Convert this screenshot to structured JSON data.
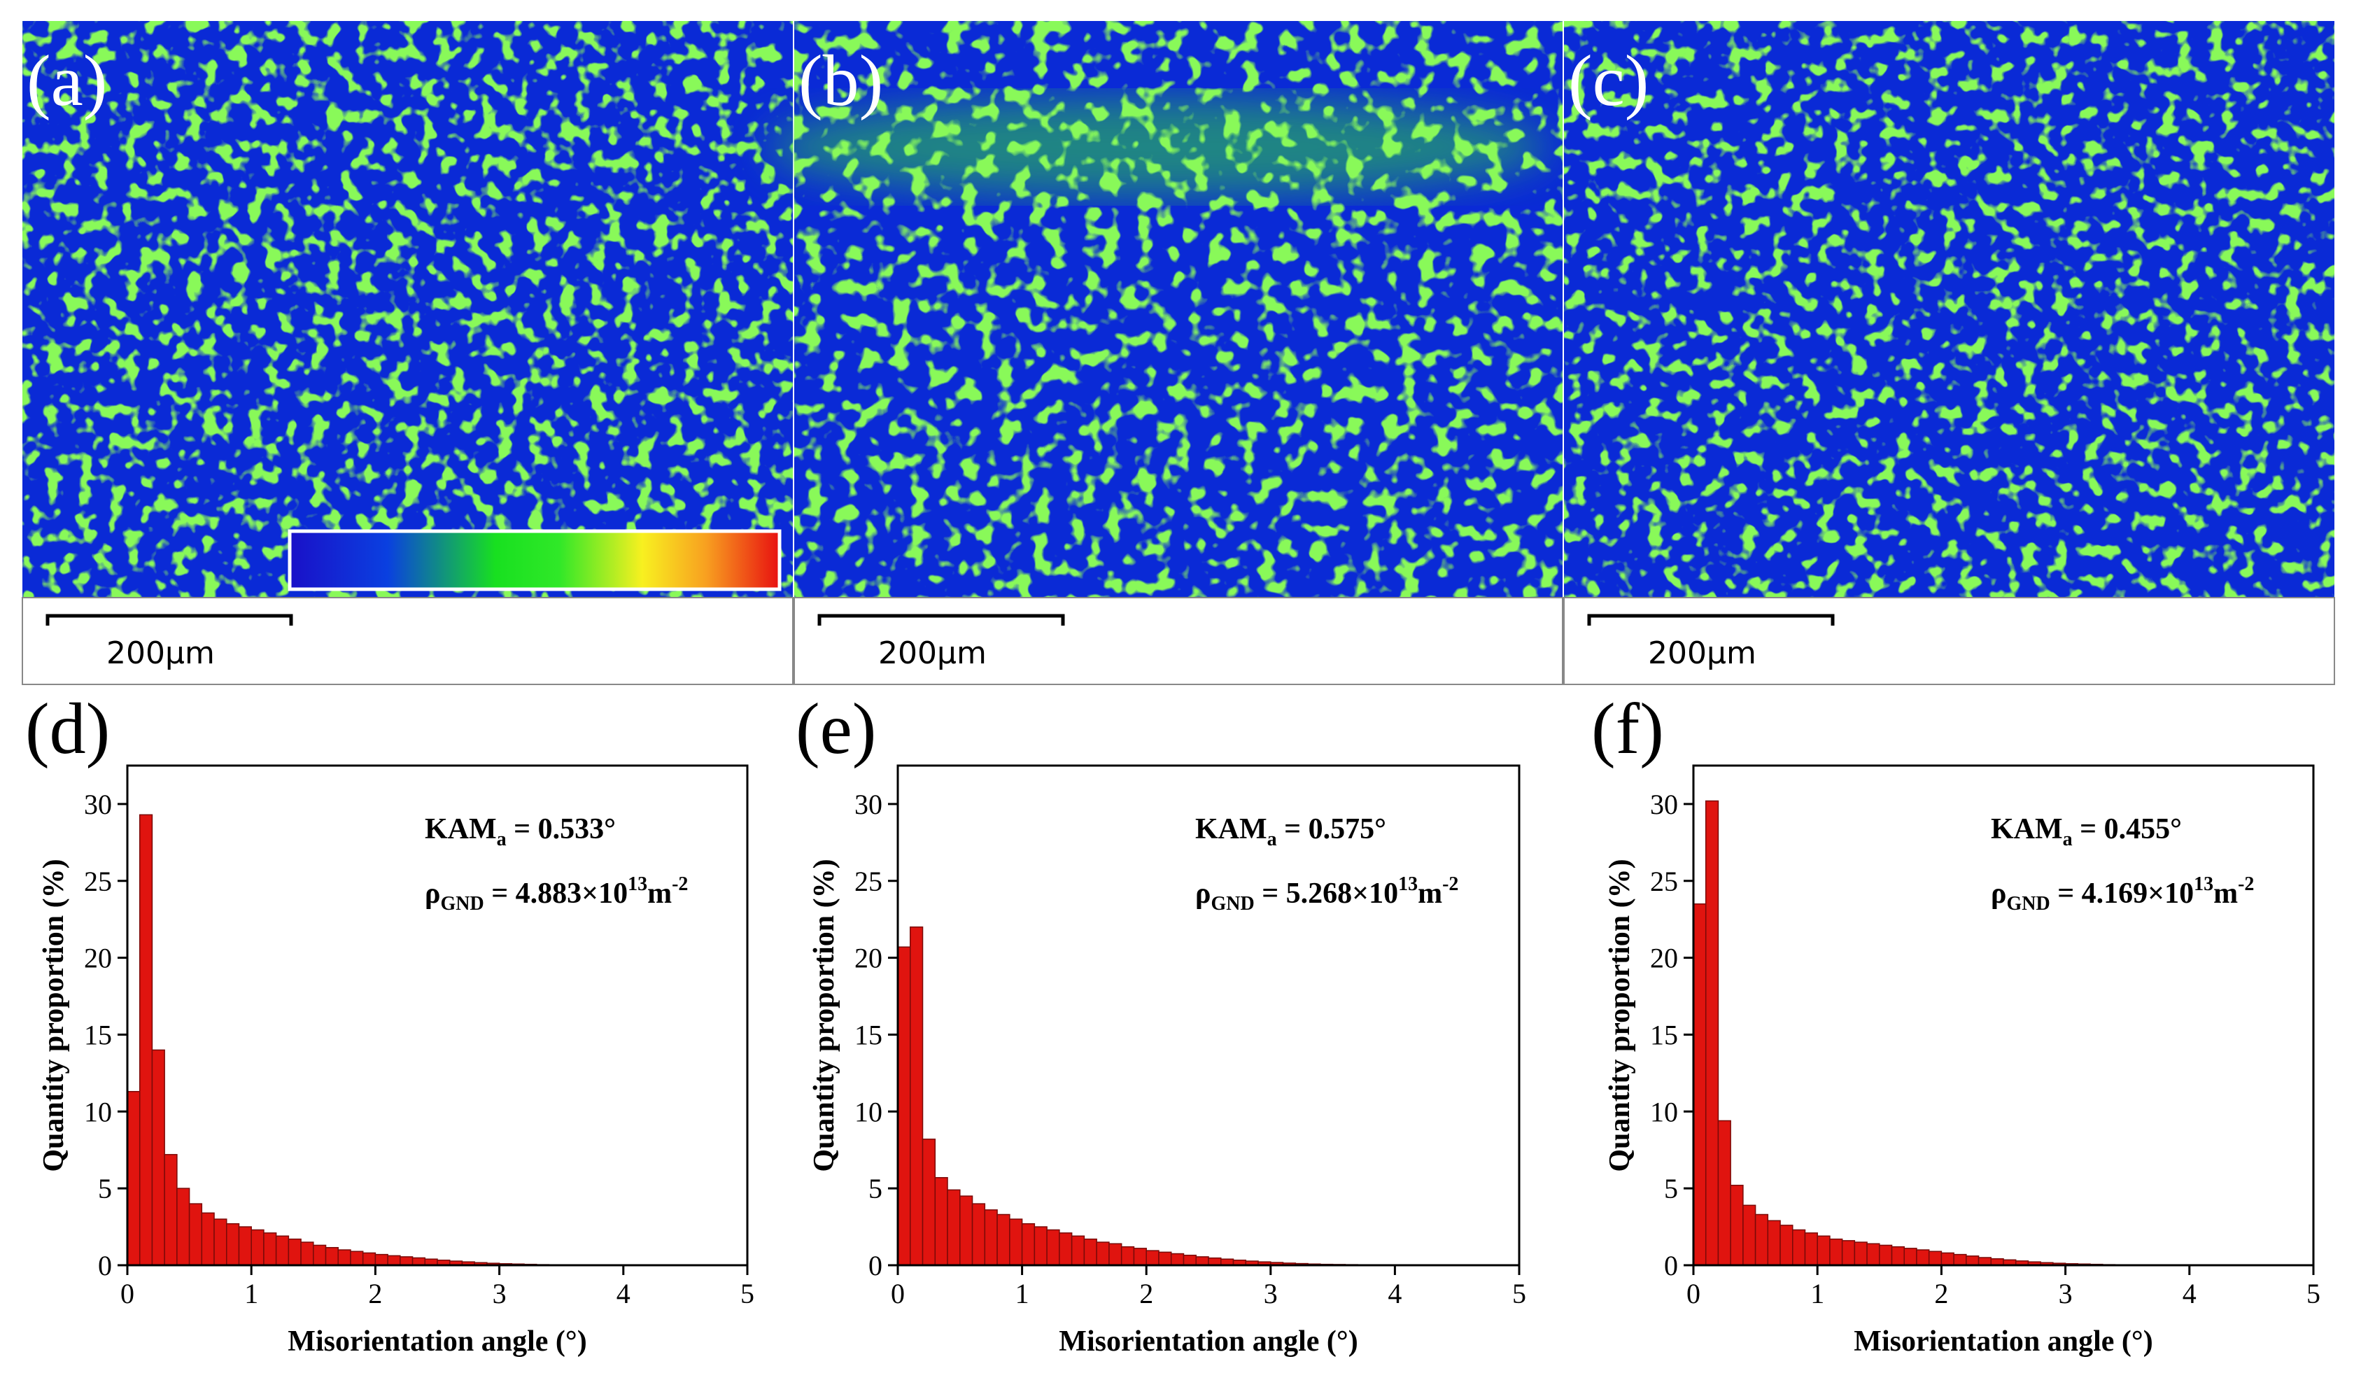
{
  "maps": [
    {
      "label": "(a)",
      "scale_bar": "200μm"
    },
    {
      "label": "(b)",
      "scale_bar": "200μm"
    },
    {
      "label": "(c)",
      "scale_bar": "200μm"
    }
  ],
  "chart_data": [
    {
      "type": "histogram",
      "panel_label": "(d)",
      "x_label": "Misorientation angle (°)",
      "y_label": "Quantity proportion (%)",
      "color": "#e0140f",
      "annotation": {
        "kam": [
          "KAM",
          "a",
          " = 0.533°"
        ],
        "rho": [
          "ρ",
          "GND",
          " = 4.883×10",
          "13",
          "m",
          "-2"
        ]
      },
      "bins": [
        0,
        0.1,
        0.2,
        0.3,
        0.4,
        0.5,
        0.6,
        0.7,
        0.8,
        0.9,
        1,
        1.1,
        1.2,
        1.3,
        1.4,
        1.5,
        1.6,
        1.7,
        1.8,
        1.9,
        2,
        2.1,
        2.2,
        2.3,
        2.4,
        2.5,
        2.6,
        2.7,
        2.8,
        2.9,
        3,
        3.1,
        3.2,
        3.3,
        3.4,
        3.5,
        3.6,
        3.7,
        3.8,
        3.9,
        4,
        4.1,
        4.2,
        4.3,
        4.4,
        4.5,
        4.6,
        4.7,
        4.8,
        4.9,
        5
      ],
      "values": [
        11.3,
        29.3,
        14.0,
        7.2,
        5.0,
        4.0,
        3.4,
        3.0,
        2.7,
        2.5,
        2.3,
        2.1,
        1.9,
        1.7,
        1.5,
        1.3,
        1.15,
        1.0,
        0.9,
        0.8,
        0.7,
        0.62,
        0.55,
        0.48,
        0.4,
        0.33,
        0.27,
        0.22,
        0.17,
        0.13,
        0.1,
        0.08,
        0.06,
        0.04,
        0.03,
        0.02,
        0.02,
        0.01,
        0.01,
        0.01,
        0,
        0,
        0,
        0,
        0,
        0,
        0,
        0,
        0,
        0
      ],
      "xlim": [
        0,
        5
      ],
      "ylim": [
        0,
        32.5
      ],
      "xticks": [
        0,
        1,
        2,
        3,
        4,
        5
      ],
      "yticks": [
        0,
        5,
        10,
        15,
        20,
        25,
        30
      ]
    },
    {
      "type": "histogram",
      "panel_label": "(e)",
      "x_label": "Misorientation angle (°)",
      "y_label": "Quantity proportion (%)",
      "color": "#e0140f",
      "annotation": {
        "kam": [
          "KAM",
          "a",
          " = 0.575°"
        ],
        "rho": [
          "ρ",
          "GND",
          " = 5.268×10",
          "13",
          "m",
          "-2"
        ]
      },
      "bins": [
        0,
        0.1,
        0.2,
        0.3,
        0.4,
        0.5,
        0.6,
        0.7,
        0.8,
        0.9,
        1,
        1.1,
        1.2,
        1.3,
        1.4,
        1.5,
        1.6,
        1.7,
        1.8,
        1.9,
        2,
        2.1,
        2.2,
        2.3,
        2.4,
        2.5,
        2.6,
        2.7,
        2.8,
        2.9,
        3,
        3.1,
        3.2,
        3.3,
        3.4,
        3.5,
        3.6,
        3.7,
        3.8,
        3.9,
        4,
        4.1,
        4.2,
        4.3,
        4.4,
        4.5,
        4.6,
        4.7,
        4.8,
        4.9,
        5
      ],
      "values": [
        20.7,
        22.0,
        8.2,
        5.7,
        4.9,
        4.5,
        4.0,
        3.6,
        3.3,
        3.0,
        2.7,
        2.5,
        2.3,
        2.1,
        1.9,
        1.7,
        1.5,
        1.4,
        1.2,
        1.1,
        0.95,
        0.85,
        0.75,
        0.65,
        0.55,
        0.47,
        0.4,
        0.33,
        0.27,
        0.22,
        0.18,
        0.14,
        0.11,
        0.08,
        0.06,
        0.05,
        0.04,
        0.03,
        0.02,
        0.01,
        0,
        0,
        0,
        0,
        0,
        0,
        0,
        0,
        0,
        0
      ],
      "xlim": [
        0,
        5
      ],
      "ylim": [
        0,
        32.5
      ],
      "xticks": [
        0,
        1,
        2,
        3,
        4,
        5
      ],
      "yticks": [
        0,
        5,
        10,
        15,
        20,
        25,
        30
      ]
    },
    {
      "type": "histogram",
      "panel_label": "(f)",
      "x_label": "Misorientation angle (°)",
      "y_label": "Quantity proportion (%)",
      "color": "#e0140f",
      "annotation": {
        "kam": [
          "KAM",
          "a",
          " = 0.455°"
        ],
        "rho": [
          "ρ",
          "GND",
          " = 4.169×10",
          "13",
          "m",
          "-2"
        ]
      },
      "bins": [
        0,
        0.1,
        0.2,
        0.3,
        0.4,
        0.5,
        0.6,
        0.7,
        0.8,
        0.9,
        1,
        1.1,
        1.2,
        1.3,
        1.4,
        1.5,
        1.6,
        1.7,
        1.8,
        1.9,
        2,
        2.1,
        2.2,
        2.3,
        2.4,
        2.5,
        2.6,
        2.7,
        2.8,
        2.9,
        3,
        3.1,
        3.2,
        3.3,
        3.4,
        3.5,
        3.6,
        3.7,
        3.8,
        3.9,
        4,
        4.1,
        4.2,
        4.3,
        4.4,
        4.5,
        4.6,
        4.7,
        4.8,
        4.9,
        5
      ],
      "values": [
        23.5,
        30.2,
        9.4,
        5.2,
        3.9,
        3.3,
        2.9,
        2.6,
        2.3,
        2.1,
        1.9,
        1.7,
        1.6,
        1.5,
        1.4,
        1.3,
        1.2,
        1.1,
        1.0,
        0.9,
        0.8,
        0.7,
        0.6,
        0.5,
        0.42,
        0.35,
        0.28,
        0.22,
        0.17,
        0.13,
        0.1,
        0.08,
        0.06,
        0.04,
        0.03,
        0.02,
        0.01,
        0.01,
        0,
        0,
        0,
        0,
        0,
        0,
        0,
        0,
        0,
        0,
        0,
        0
      ],
      "xlim": [
        0,
        5
      ],
      "ylim": [
        0,
        32.5
      ],
      "xticks": [
        0,
        1,
        2,
        3,
        4,
        5
      ],
      "yticks": [
        0,
        5,
        10,
        15,
        20,
        25,
        30
      ]
    }
  ]
}
